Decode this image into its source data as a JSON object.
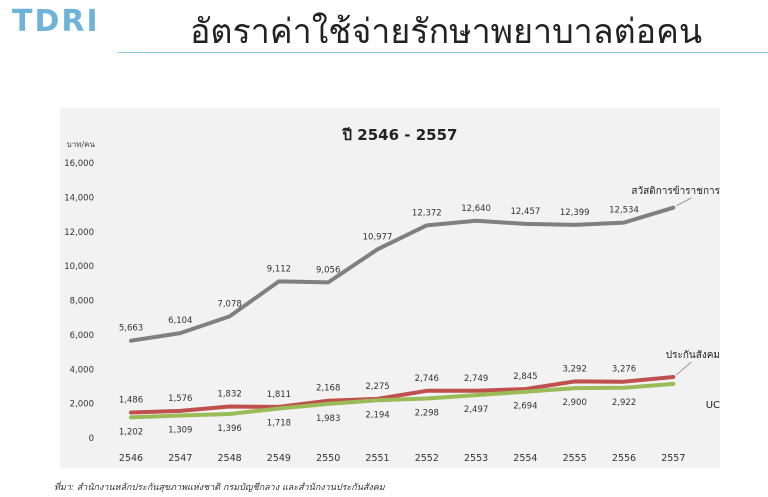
{
  "header": {
    "logo_text": "TDRI",
    "title": "อัตราค่าใช้จ่ายรักษาพยาบาลต่อคน"
  },
  "source_note": "ที่มา: สำนักงานหลักประกันสุขภาพแห่งชาติ กรมบัญชีกลาง และสำนักงานประกันสังคม",
  "chart_data": {
    "type": "line",
    "title": "ปี 2546 - 2557",
    "ylabel": "บาท/คน",
    "xlabel": "",
    "ylim": [
      0,
      16000
    ],
    "yticks": [
      "0",
      "2,000",
      "4,000",
      "6,000",
      "8,000",
      "10,000",
      "12,000",
      "14,000",
      "16,000"
    ],
    "categories": [
      "2546",
      "2547",
      "2548",
      "2549",
      "2550",
      "2551",
      "2552",
      "2553",
      "2554",
      "2555",
      "2556",
      "2557"
    ],
    "grid": false,
    "series": [
      {
        "name": "สวัสดิการข้าราชการ",
        "color": "#808080",
        "values": [
          5663,
          6104,
          7078,
          9112,
          9056,
          10977,
          12372,
          12640,
          12457,
          12399,
          12534,
          13400
        ],
        "labels": [
          "5,663",
          "6,104",
          "7,078",
          "9,112",
          "9,056",
          "10,977",
          "12,372",
          "12,640",
          "12,457",
          "12,399",
          "12,534",
          ""
        ]
      },
      {
        "name": "ประกันสังคม",
        "color": "#c0504d",
        "values": [
          1486,
          1576,
          1832,
          1811,
          2168,
          2275,
          2746,
          2749,
          2845,
          3292,
          3276,
          3550
        ],
        "labels": [
          "1,486",
          "1,576",
          "1,832",
          "1,811",
          "2,168",
          "2,275",
          "2,746",
          "2,749",
          "2,845",
          "3,292",
          "3,276",
          ""
        ]
      },
      {
        "name": "UC",
        "color": "#9bbb59",
        "values": [
          1202,
          1309,
          1396,
          1718,
          1983,
          2194,
          2298,
          2497,
          2694,
          2900,
          2922,
          3150
        ],
        "labels": [
          "1,202",
          "1,309",
          "1,396",
          "1,718",
          "1,983",
          "2,194",
          "2,298",
          "2,497",
          "2,694",
          "2,900",
          "2,922",
          ""
        ]
      }
    ]
  }
}
